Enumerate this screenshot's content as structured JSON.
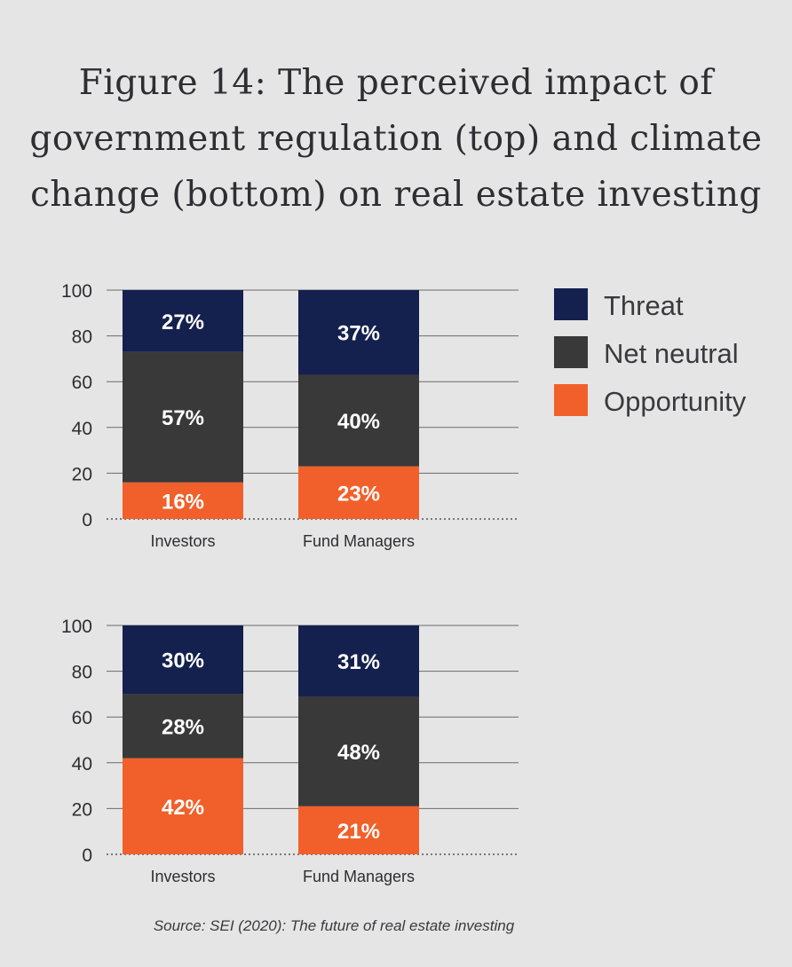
{
  "title_lines": [
    "Figure 14: The perceived impact of",
    "government regulation (top) and climate",
    "change (bottom) on real estate investing"
  ],
  "legend": [
    {
      "label": "Threat",
      "color": "#14204e"
    },
    {
      "label": "Net neutral",
      "color": "#3a3939"
    },
    {
      "label": "Opportunity",
      "color": "#f1602a"
    }
  ],
  "source": "Source: SEI (2020): The future of real estate investing",
  "chart_data": [
    {
      "type": "bar",
      "stacked": true,
      "title": "Government regulation",
      "categories": [
        "Investors",
        "Fund Managers"
      ],
      "series": [
        {
          "name": "Opportunity",
          "values": [
            16,
            23
          ]
        },
        {
          "name": "Net neutral",
          "values": [
            57,
            40
          ]
        },
        {
          "name": "Threat",
          "values": [
            27,
            37
          ]
        }
      ],
      "labels": {
        "Opportunity": [
          "16%",
          "23%"
        ],
        "Net neutral": [
          "57%",
          "40%"
        ],
        "Threat": [
          "27%",
          "37%"
        ]
      },
      "ylim": [
        0,
        100
      ],
      "yticks": [
        0,
        20,
        40,
        60,
        80,
        100
      ]
    },
    {
      "type": "bar",
      "stacked": true,
      "title": "Climate change",
      "categories": [
        "Investors",
        "Fund Managers"
      ],
      "series": [
        {
          "name": "Opportunity",
          "values": [
            42,
            21
          ]
        },
        {
          "name": "Net neutral",
          "values": [
            28,
            48
          ]
        },
        {
          "name": "Threat",
          "values": [
            30,
            31
          ]
        }
      ],
      "labels": {
        "Opportunity": [
          "42%",
          "21%"
        ],
        "Net neutral": [
          "28%",
          "48%"
        ],
        "Threat": [
          "30%",
          "31%"
        ]
      },
      "ylim": [
        0,
        100
      ],
      "yticks": [
        0,
        20,
        40,
        60,
        80,
        100
      ]
    }
  ]
}
